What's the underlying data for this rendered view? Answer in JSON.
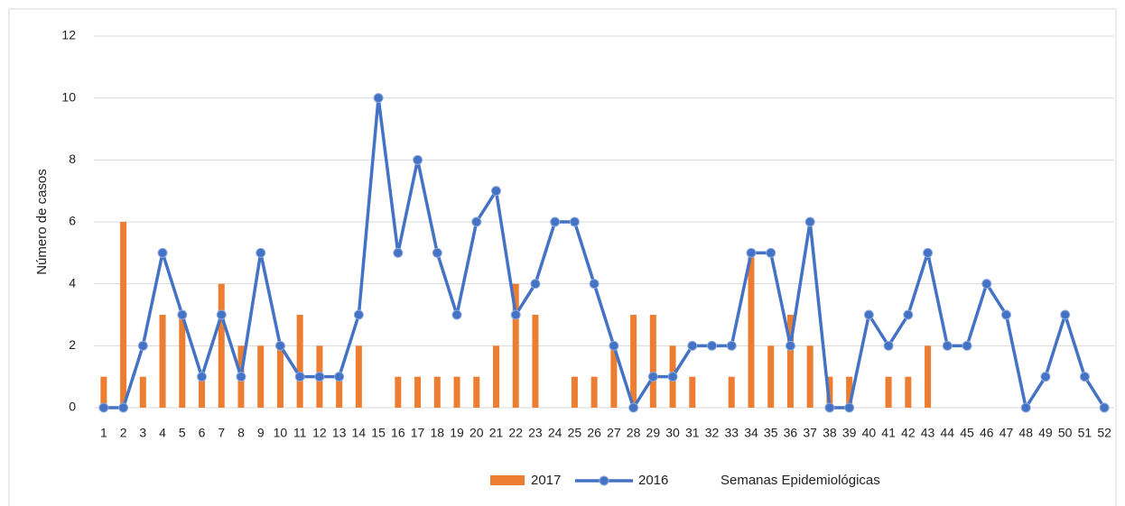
{
  "chart_data": {
    "type": "bar-line",
    "y_label": "Número de casos",
    "x_label": "Semanas Epidemiológicas",
    "categories": [
      "1",
      "2",
      "3",
      "4",
      "5",
      "6",
      "7",
      "8",
      "9",
      "10",
      "11",
      "12",
      "13",
      "14",
      "15",
      "16",
      "17",
      "18",
      "19",
      "20",
      "21",
      "22",
      "23",
      "24",
      "25",
      "26",
      "27",
      "28",
      "29",
      "30",
      "31",
      "32",
      "33",
      "34",
      "35",
      "36",
      "37",
      "38",
      "39",
      "40",
      "41",
      "42",
      "43",
      "44",
      "45",
      "46",
      "47",
      "48",
      "49",
      "50",
      "51",
      "52"
    ],
    "series": [
      {
        "name": "2017",
        "kind": "bar",
        "color": "#ed7d31",
        "values": [
          1,
          6,
          1,
          3,
          3,
          1,
          4,
          2,
          2,
          2,
          3,
          2,
          1,
          2,
          0,
          1,
          1,
          1,
          1,
          1,
          2,
          4,
          3,
          0,
          1,
          1,
          2,
          3,
          3,
          2,
          1,
          0,
          1,
          5,
          2,
          3,
          2,
          1,
          1,
          0,
          1,
          1,
          2,
          0,
          0,
          0,
          0,
          0,
          0,
          0,
          0,
          0
        ]
      },
      {
        "name": "2016",
        "kind": "line",
        "color": "#4472c4",
        "values": [
          0,
          0,
          2,
          5,
          3,
          1,
          3,
          1,
          5,
          2,
          1,
          1,
          1,
          3,
          10,
          5,
          8,
          5,
          3,
          6,
          7,
          3,
          4,
          6,
          6,
          4,
          2,
          0,
          1,
          1,
          2,
          2,
          2,
          5,
          5,
          2,
          6,
          0,
          0,
          3,
          2,
          3,
          5,
          2,
          2,
          4,
          3,
          0,
          1,
          3,
          1,
          0
        ]
      }
    ],
    "ylim": [
      0,
      12
    ],
    "yticks": [
      0,
      2,
      4,
      6,
      8,
      10,
      12
    ],
    "grid": true
  }
}
